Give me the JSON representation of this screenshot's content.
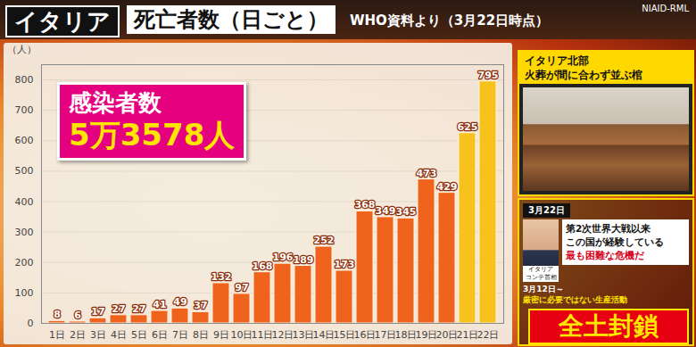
{
  "header": {
    "tag": "イタリア",
    "source": "NIAID-RML"
  },
  "chart_data": {
    "type": "bar",
    "title": "死亡者数（日ごと）",
    "subtitle": "WHO資料より（3月22日時点）",
    "y_label": "（人）",
    "categories": [
      "1日",
      "2日",
      "3日",
      "4日",
      "5日",
      "6日",
      "7日",
      "8日",
      "9日",
      "10日",
      "11日",
      "12日",
      "13日",
      "14日",
      "15日",
      "16日",
      "17日",
      "18日",
      "19日",
      "20日",
      "21日",
      "22日"
    ],
    "values": [
      8,
      6,
      17,
      27,
      27,
      41,
      49,
      37,
      132,
      97,
      168,
      196,
      189,
      252,
      173,
      368,
      349,
      345,
      473,
      429,
      625,
      795
    ],
    "colors": [
      "#f0631c",
      "#f0631c",
      "#f0631c",
      "#f0631c",
      "#f0631c",
      "#f0631c",
      "#f0631c",
      "#f0631c",
      "#f0631c",
      "#f0631c",
      "#f0631c",
      "#f0631c",
      "#f0631c",
      "#f0631c",
      "#f0631c",
      "#f0631c",
      "#f0631c",
      "#f0631c",
      "#f0631c",
      "#f0631c",
      "#f7c21b",
      "#f7c21b"
    ],
    "ylim": [
      0,
      850
    ],
    "yticks": [
      0,
      100,
      200,
      300,
      400,
      500,
      600,
      700,
      800
    ],
    "grid": true,
    "data_labels": true,
    "annotations": [
      {
        "label": "感染者数",
        "text": "5万3578人"
      }
    ]
  },
  "side_panels": {
    "photo": {
      "title": [
        "イタリア北部",
        "火葬が間に合わず並ぶ棺"
      ]
    },
    "quote": {
      "date": "3月22日",
      "speaker": [
        "イタリア",
        "コンテ首相"
      ],
      "lines": [
        "第2次世界大戦以来",
        "この国が経験している",
        "最も困難な危機だ"
      ]
    },
    "lockdown": {
      "date": "3月12日～",
      "text": "厳密に必要ではない生産活動",
      "headline": "全土封鎖"
    }
  }
}
